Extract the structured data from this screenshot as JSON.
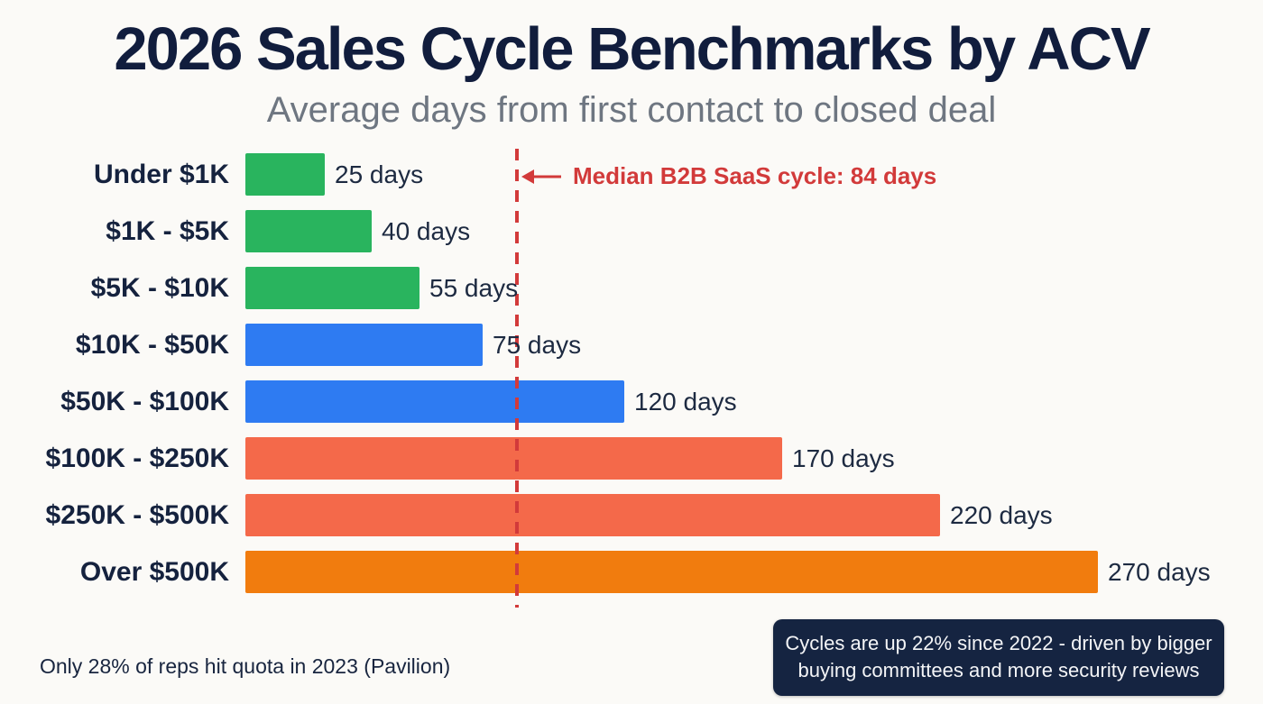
{
  "header": {
    "title": "2026 Sales Cycle Benchmarks by ACV",
    "subtitle": "Average days from first contact to closed deal"
  },
  "chart_data": {
    "type": "bar",
    "orientation": "horizontal",
    "title": "2026 Sales Cycle Benchmarks by ACV",
    "subtitle": "Average days from first contact to closed deal",
    "categories": [
      "Under $1K",
      "$1K - $5K",
      "$5K - $10K",
      "$10K - $50K",
      "$50K - $100K",
      "$100K - $250K",
      "$250K - $500K",
      "Over $500K"
    ],
    "values": [
      25,
      40,
      55,
      75,
      120,
      170,
      220,
      270
    ],
    "unit": "days",
    "value_labels": [
      "25 days",
      "40 days",
      "55 days",
      "75 days",
      "120 days",
      "170 days",
      "220 days",
      "270 days"
    ],
    "bar_colors": [
      "#29b45e",
      "#29b45e",
      "#29b45e",
      "#2e7bf2",
      "#2e7bf2",
      "#f4694a",
      "#f4694a",
      "#f17c0e"
    ],
    "xlim": [
      0,
      300
    ],
    "grid": false,
    "legend": false,
    "annotation": {
      "label": "Median B2B SaaS cycle: 84 days",
      "value_days": 84,
      "line_style": "dashed",
      "color": "#d23a3a"
    }
  },
  "footer": {
    "note": "Only 28% of reps hit quota in 2023 (Pavilion)",
    "callout_lines": [
      "Cycles are up 22% since 2022 - driven by bigger",
      "buying committees and more security reviews"
    ],
    "callout_bg": "#152441"
  },
  "colors": {
    "background": "#fbfaf7",
    "title_text": "#111d3d",
    "subtitle_text": "#6e7681",
    "label_text": "#15223e",
    "green": "#29b45e",
    "blue": "#2e7bf2",
    "salmon": "#f4694a",
    "orange": "#f17c0e",
    "median_red": "#d23a3a"
  }
}
